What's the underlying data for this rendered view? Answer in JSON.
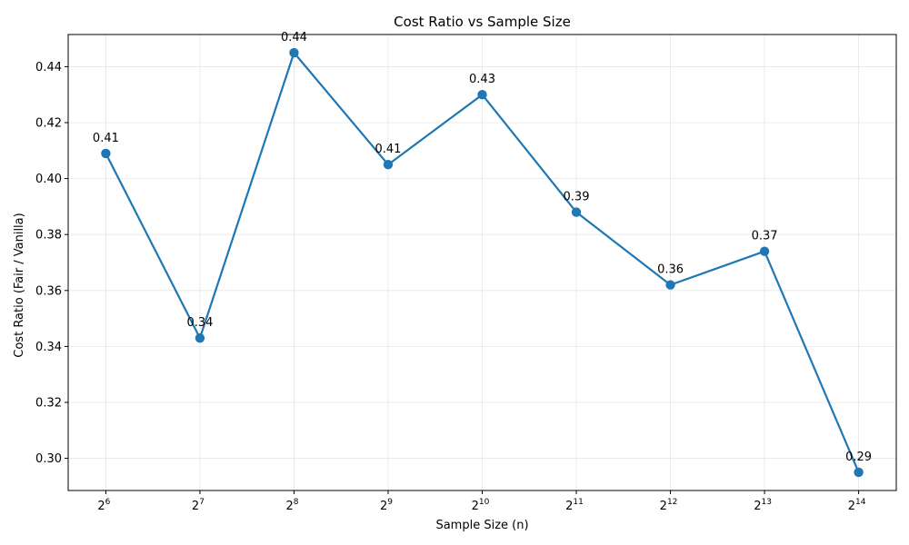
{
  "chart_data": {
    "type": "line",
    "title": "Cost Ratio vs Sample Size",
    "xlabel": "Sample Size (n)",
    "ylabel": "Cost Ratio (Fair / Vanilla)",
    "x_scale": "log2",
    "x": [
      64,
      128,
      256,
      512,
      1024,
      2048,
      4096,
      8192,
      16384
    ],
    "x_tick_labels": [
      {
        "base": "2",
        "exp": "6"
      },
      {
        "base": "2",
        "exp": "7"
      },
      {
        "base": "2",
        "exp": "8"
      },
      {
        "base": "2",
        "exp": "9"
      },
      {
        "base": "2",
        "exp": "10"
      },
      {
        "base": "2",
        "exp": "11"
      },
      {
        "base": "2",
        "exp": "12"
      },
      {
        "base": "2",
        "exp": "13"
      },
      {
        "base": "2",
        "exp": "14"
      }
    ],
    "series": [
      {
        "values": [
          0.409,
          0.343,
          0.445,
          0.405,
          0.43,
          0.388,
          0.362,
          0.374,
          0.295
        ],
        "data_labels": [
          "0.41",
          "0.34",
          "0.44",
          "0.41",
          "0.43",
          "0.39",
          "0.36",
          "0.37",
          "0.29"
        ],
        "color": "#1f77b4"
      }
    ],
    "ylim": [
      0.2885,
      0.4515
    ],
    "y_ticks": [
      "0.30",
      "0.32",
      "0.34",
      "0.36",
      "0.38",
      "0.40",
      "0.42",
      "0.44"
    ],
    "grid": true,
    "legend": false
  }
}
